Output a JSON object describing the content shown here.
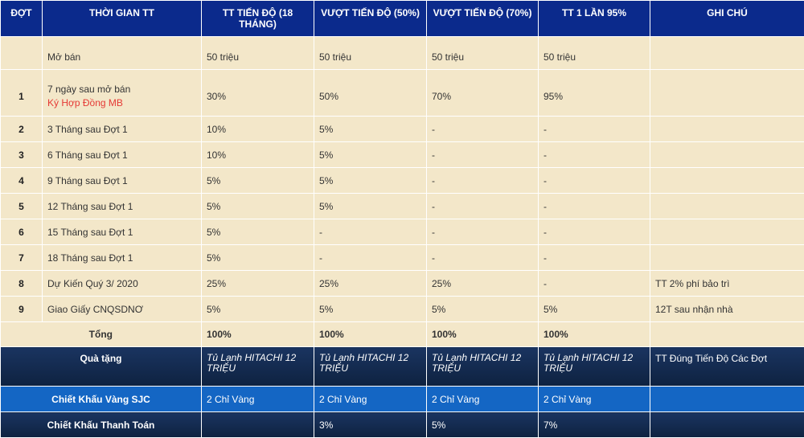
{
  "headers": [
    "ĐỢT",
    "THỜI GIAN TT",
    "TT TIẾN ĐỘ (18 THÁNG)",
    "VƯỢT TIẾN ĐỘ (50%)",
    "VƯỢT TIẾN ĐỘ (70%)",
    "TT 1 LẦN 95%",
    "GHI CHÚ"
  ],
  "rows": [
    {
      "dot": "",
      "time": "Mở bán",
      "sub": "",
      "c1": "50 triệu",
      "c2": "50 triệu",
      "c3": "50 triệu",
      "c4": "50 triệu",
      "note": ""
    },
    {
      "dot": "1",
      "time": "7 ngày sau mở bán",
      "sub": "Ký Hợp Đồng MB",
      "c1": "30%",
      "c2": "50%",
      "c3": "70%",
      "c4": "95%",
      "note": ""
    },
    {
      "dot": "2",
      "time": "3 Tháng sau Đợt 1",
      "sub": "",
      "c1": "10%",
      "c2": "5%",
      "c3": "-",
      "c4": "-",
      "note": ""
    },
    {
      "dot": "3",
      "time": "6 Tháng sau Đợt 1",
      "sub": "",
      "c1": "10%",
      "c2": "5%",
      "c3": "-",
      "c4": "-",
      "note": ""
    },
    {
      "dot": "4",
      "time": "9 Tháng sau Đợt 1",
      "sub": "",
      "c1": "5%",
      "c2": "5%",
      "c3": "-",
      "c4": "-",
      "note": ""
    },
    {
      "dot": "5",
      "time": "12 Tháng sau Đợt 1",
      "sub": "",
      "c1": "5%",
      "c2": "5%",
      "c3": "-",
      "c4": "-",
      "note": ""
    },
    {
      "dot": "6",
      "time": "15 Tháng sau Đợt 1",
      "sub": "",
      "c1": "5%",
      "c2": "-",
      "c3": "-",
      "c4": "-",
      "note": ""
    },
    {
      "dot": "7",
      "time": "18 Tháng sau Đợt 1",
      "sub": "",
      "c1": "5%",
      "c2": "-",
      "c3": "-",
      "c4": "-",
      "note": ""
    },
    {
      "dot": "8",
      "time": "Dự Kiến Quý 3/ 2020",
      "sub": "",
      "c1": "25%",
      "c2": "25%",
      "c3": "25%",
      "c4": "-",
      "note": "TT 2% phí bảo trì"
    },
    {
      "dot": "9",
      "time": "Giao Giấy CNQSDNƠ",
      "sub": "",
      "c1": "5%",
      "c2": "5%",
      "c3": "5%",
      "c4": "5%",
      "note": "12T sau nhận nhà"
    }
  ],
  "total": {
    "label": "Tổng",
    "c1": "100%",
    "c2": "100%",
    "c3": "100%",
    "c4": "100%"
  },
  "gift": {
    "label": "Quà tặng",
    "c1": "Tủ Lạnh HITACHI 12 TRIỆU",
    "c2": "Tủ Lạnh HITACHI 12 TRIỆU",
    "c3": "Tủ Lạnh HITACHI 12 TRIỆU",
    "c4": "Tủ Lạnh HITACHI 12 TRIỆU",
    "note": "TT Đúng Tiến Độ Các Đợt"
  },
  "sjc": {
    "label": "Chiết Khấu Vàng SJC",
    "c1": "2 Chỉ Vàng",
    "c2": "2 Chỉ Vàng",
    "c3": "2 Chỉ Vàng",
    "c4": "2 Chỉ Vàng",
    "note": ""
  },
  "payment": {
    "label": "Chiết Khấu Thanh Toán",
    "c1": "",
    "c2": "3%",
    "c3": "5%",
    "c4": "7%",
    "note": ""
  },
  "colors": {
    "header_bg": "#0b2a8c",
    "body_bg": "#f3e7c9",
    "sub_text": "#e53935",
    "gift_bg": "#13294f",
    "sjc_bg": "#1466c4"
  }
}
